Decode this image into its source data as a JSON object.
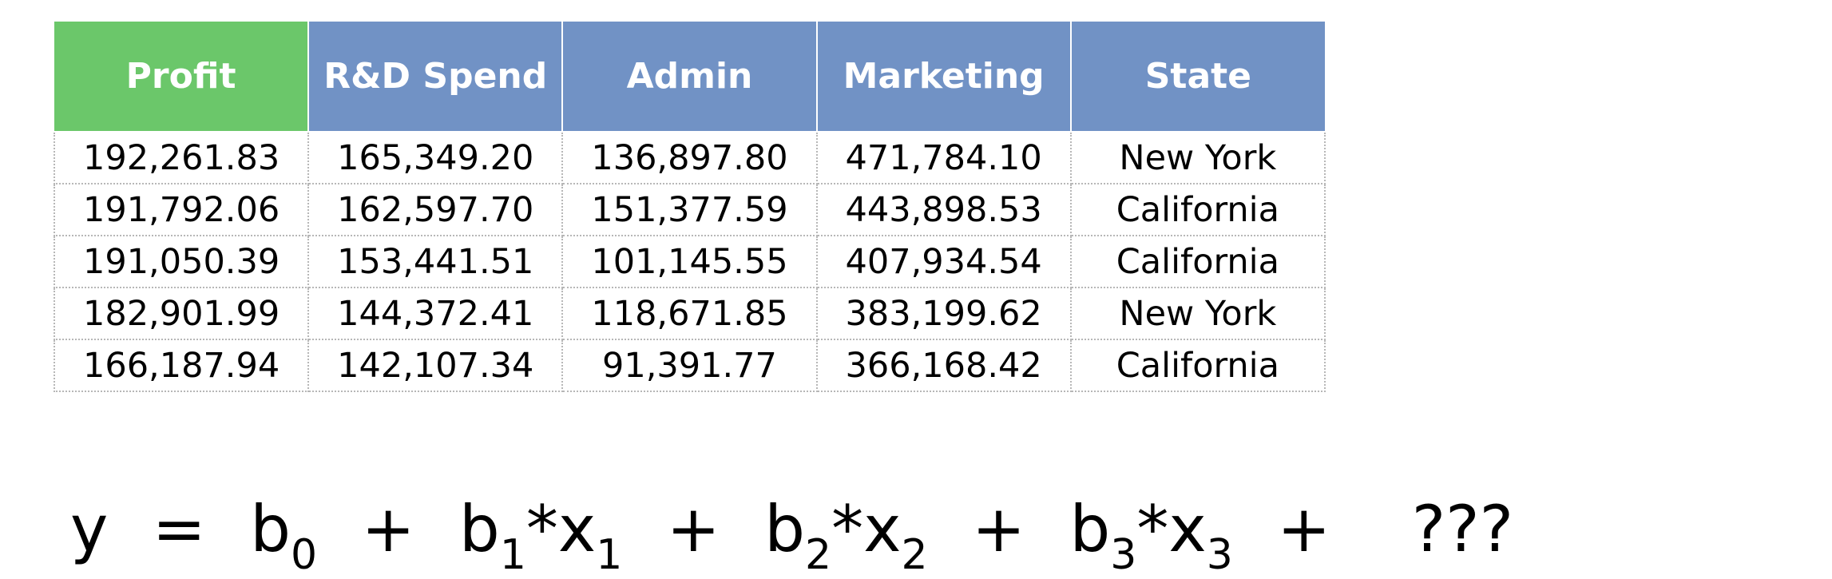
{
  "table": {
    "headers": [
      {
        "label": "Profit",
        "role": "target",
        "color": "#6bc76a"
      },
      {
        "label": "R&D Spend",
        "role": "feature",
        "color": "#7192c5"
      },
      {
        "label": "Admin",
        "role": "feature",
        "color": "#7192c5"
      },
      {
        "label": "Marketing",
        "role": "feature",
        "color": "#7192c5"
      },
      {
        "label": "State",
        "role": "feature",
        "color": "#7192c5"
      }
    ],
    "rows": [
      [
        "192,261.83",
        "165,349.20",
        "136,897.80",
        "471,784.10",
        "New York"
      ],
      [
        "191,792.06",
        "162,597.70",
        "151,377.59",
        "443,898.53",
        "California"
      ],
      [
        "191,050.39",
        "153,441.51",
        "101,145.55",
        "407,934.54",
        "California"
      ],
      [
        "182,901.99",
        "144,372.41",
        "118,671.85",
        "383,199.62",
        "New York"
      ],
      [
        "166,187.94",
        "142,107.34",
        "91,391.77",
        "366,168.42",
        "California"
      ]
    ]
  },
  "formula": {
    "lhs": "y",
    "equals": "=",
    "plus": "+",
    "b0": "b",
    "b0_sub": "0",
    "b1": "b",
    "b1_sub": "1",
    "x1": "*x",
    "x1_sub": "1",
    "b2": "b",
    "b2_sub": "2",
    "x2": "*x",
    "x2_sub": "2",
    "b3": "b",
    "b3_sub": "3",
    "x3": "*x",
    "x3_sub": "3",
    "unknown": "???"
  }
}
